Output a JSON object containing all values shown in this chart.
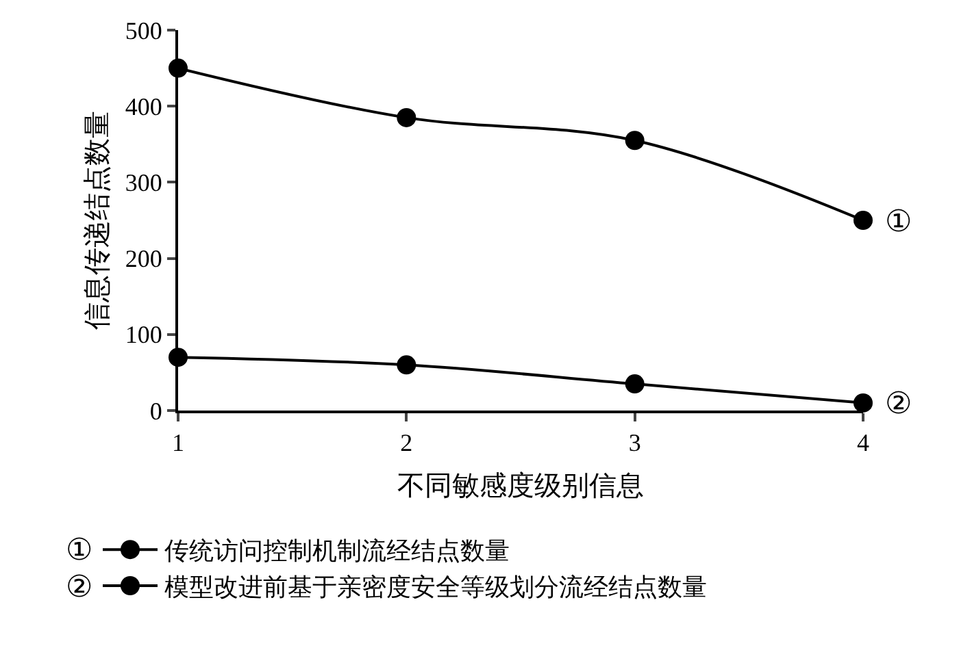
{
  "chart_data": {
    "type": "line",
    "xlabel": "不同敏感度级别信息",
    "ylabel": "信息传递结点数量",
    "x": [
      1,
      2,
      3,
      4
    ],
    "series": [
      {
        "name": "传统访问控制机制流经结点数量",
        "color": "#000000",
        "values": [
          450,
          385,
          355,
          250
        ]
      },
      {
        "name": "模型改进前基于亲密度安全等级划分流经结点数量",
        "color": "#000000",
        "values": [
          70,
          60,
          35,
          10
        ]
      }
    ],
    "annotations": [
      {
        "text": "①",
        "x": 4,
        "y": 250
      },
      {
        "text": "②",
        "x": 4,
        "y": 10
      }
    ],
    "xlim": [
      1,
      4
    ],
    "xticks": [
      1,
      2,
      3,
      4
    ],
    "ylim": [
      0,
      500
    ],
    "yticks": [
      0,
      100,
      200,
      300,
      400,
      500
    ],
    "legend": "bottom",
    "marker": "circle",
    "line_style": "solid"
  }
}
